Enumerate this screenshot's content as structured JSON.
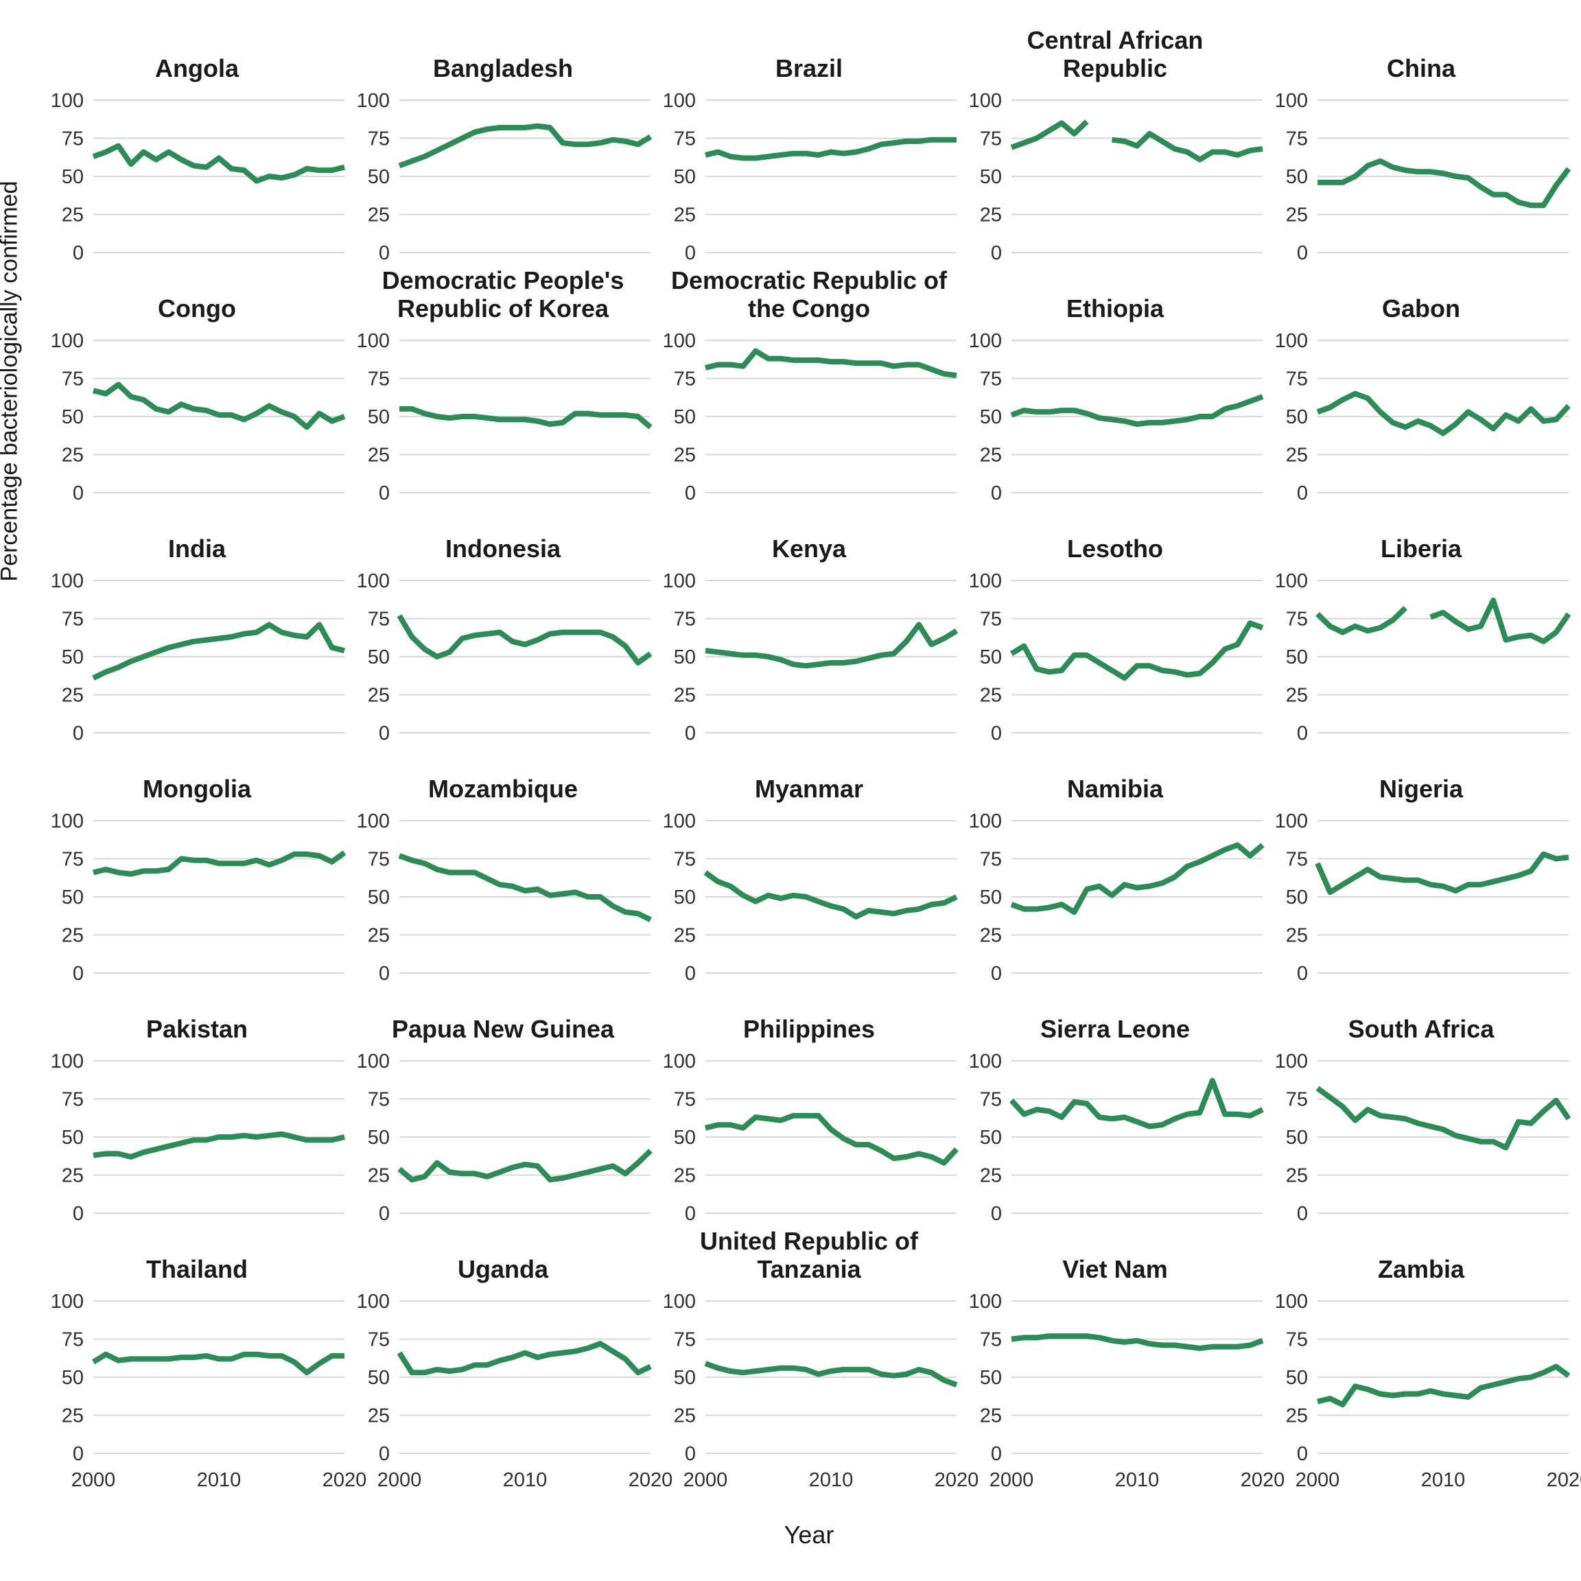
{
  "chart_data": {
    "type": "line",
    "title": "",
    "xlabel": "Year",
    "ylabel": "Percentage bacteriologically confirmed",
    "x_start": 2000,
    "x_end": 2020,
    "xticks": [
      2000,
      2010,
      2020
    ],
    "yticks": [
      0,
      25,
      50,
      75,
      100
    ],
    "ylim": [
      0,
      100
    ],
    "grid": "horizontal-only",
    "legend": "none",
    "line_color": "#2e8b57",
    "gridline_color": "#d8d8d8",
    "tick_text_color": "#303030",
    "title_text_color": "#1a1a1a",
    "facets": [
      {
        "title": "Angola",
        "values": [
          63,
          66,
          70,
          58,
          66,
          61,
          66,
          61,
          57,
          56,
          62,
          55,
          54,
          47,
          50,
          49,
          51,
          55,
          54,
          54,
          56
        ]
      },
      {
        "title": "Bangladesh",
        "values": [
          57,
          60,
          63,
          67,
          71,
          75,
          79,
          81,
          82,
          82,
          82,
          83,
          82,
          72,
          71,
          71,
          72,
          74,
          73,
          71,
          76
        ]
      },
      {
        "title": "Brazil",
        "values": [
          64,
          66,
          63,
          62,
          62,
          63,
          64,
          65,
          65,
          64,
          66,
          65,
          66,
          68,
          71,
          72,
          73,
          73,
          74,
          74,
          74
        ]
      },
      {
        "title": "Central African Republic",
        "values": [
          69,
          72,
          75,
          80,
          85,
          78,
          86,
          null,
          74,
          73,
          70,
          78,
          73,
          68,
          66,
          61,
          66,
          66,
          64,
          67,
          68
        ]
      },
      {
        "title": "China",
        "values": [
          46,
          46,
          46,
          50,
          57,
          60,
          56,
          54,
          53,
          53,
          52,
          50,
          49,
          43,
          38,
          38,
          33,
          31,
          31,
          44,
          55
        ]
      },
      {
        "title": "Congo",
        "values": [
          67,
          65,
          71,
          63,
          61,
          55,
          53,
          58,
          55,
          54,
          51,
          51,
          48,
          52,
          57,
          53,
          50,
          43,
          52,
          47,
          50
        ]
      },
      {
        "title": "Democratic People's Republic of Korea",
        "values": [
          55,
          55,
          52,
          50,
          49,
          50,
          50,
          49,
          48,
          48,
          48,
          47,
          45,
          46,
          52,
          52,
          51,
          51,
          51,
          50,
          43
        ]
      },
      {
        "title": "Democratic Republic of the Congo",
        "values": [
          82,
          84,
          84,
          83,
          93,
          88,
          88,
          87,
          87,
          87,
          86,
          86,
          85,
          85,
          85,
          83,
          84,
          84,
          81,
          78,
          77
        ]
      },
      {
        "title": "Ethiopia",
        "values": [
          51,
          54,
          53,
          53,
          54,
          54,
          52,
          49,
          48,
          47,
          45,
          46,
          46,
          47,
          48,
          50,
          50,
          55,
          57,
          60,
          63
        ]
      },
      {
        "title": "Gabon",
        "values": [
          53,
          56,
          61,
          65,
          62,
          53,
          46,
          43,
          47,
          44,
          39,
          45,
          53,
          48,
          42,
          51,
          47,
          55,
          47,
          48,
          57
        ]
      },
      {
        "title": "India",
        "values": [
          36,
          40,
          43,
          47,
          50,
          53,
          56,
          58,
          60,
          61,
          62,
          63,
          65,
          66,
          71,
          66,
          64,
          63,
          71,
          56,
          54
        ]
      },
      {
        "title": "Indonesia",
        "values": [
          77,
          63,
          55,
          50,
          53,
          62,
          64,
          65,
          66,
          60,
          58,
          61,
          65,
          66,
          66,
          66,
          66,
          63,
          57,
          46,
          52
        ]
      },
      {
        "title": "Kenya",
        "values": [
          54,
          53,
          52,
          51,
          51,
          50,
          48,
          45,
          44,
          45,
          46,
          46,
          47,
          49,
          51,
          52,
          60,
          71,
          58,
          62,
          67
        ]
      },
      {
        "title": "Lesotho",
        "values": [
          52,
          57,
          42,
          40,
          41,
          51,
          51,
          46,
          41,
          36,
          44,
          44,
          41,
          40,
          38,
          39,
          46,
          55,
          58,
          72,
          69
        ]
      },
      {
        "title": "Liberia",
        "values": [
          78,
          70,
          66,
          70,
          67,
          69,
          74,
          82,
          null,
          76,
          79,
          73,
          68,
          70,
          87,
          61,
          63,
          64,
          60,
          66,
          78
        ]
      },
      {
        "title": "Mongolia",
        "values": [
          66,
          68,
          66,
          65,
          67,
          67,
          68,
          75,
          74,
          74,
          72,
          72,
          72,
          74,
          71,
          74,
          78,
          78,
          77,
          73,
          79
        ]
      },
      {
        "title": "Mozambique",
        "values": [
          77,
          74,
          72,
          68,
          66,
          66,
          66,
          62,
          58,
          57,
          54,
          55,
          51,
          52,
          53,
          50,
          50,
          44,
          40,
          39,
          35
        ]
      },
      {
        "title": "Myanmar",
        "values": [
          66,
          60,
          57,
          51,
          47,
          51,
          49,
          51,
          50,
          47,
          44,
          42,
          37,
          41,
          40,
          39,
          41,
          42,
          45,
          46,
          50
        ]
      },
      {
        "title": "Namibia",
        "values": [
          45,
          42,
          42,
          43,
          45,
          40,
          55,
          57,
          51,
          58,
          56,
          57,
          59,
          63,
          70,
          73,
          77,
          81,
          84,
          77,
          84
        ]
      },
      {
        "title": "Nigeria",
        "values": [
          72,
          53,
          58,
          63,
          68,
          63,
          62,
          61,
          61,
          58,
          57,
          54,
          58,
          58,
          60,
          62,
          64,
          67,
          78,
          75,
          76
        ]
      },
      {
        "title": "Pakistan",
        "values": [
          38,
          39,
          39,
          37,
          40,
          42,
          44,
          46,
          48,
          48,
          50,
          50,
          51,
          50,
          51,
          52,
          50,
          48,
          48,
          48,
          50
        ]
      },
      {
        "title": "Papua New Guinea",
        "values": [
          29,
          22,
          24,
          33,
          27,
          26,
          26,
          24,
          27,
          30,
          32,
          31,
          22,
          23,
          25,
          27,
          29,
          31,
          26,
          33,
          41
        ]
      },
      {
        "title": "Philippines",
        "values": [
          56,
          58,
          58,
          56,
          63,
          62,
          61,
          64,
          64,
          64,
          55,
          49,
          45,
          45,
          41,
          36,
          37,
          39,
          37,
          33,
          42
        ]
      },
      {
        "title": "Sierra Leone",
        "values": [
          74,
          65,
          68,
          67,
          63,
          73,
          72,
          63,
          62,
          63,
          60,
          57,
          58,
          62,
          65,
          66,
          87,
          65,
          65,
          64,
          68
        ]
      },
      {
        "title": "South Africa",
        "values": [
          82,
          76,
          70,
          61,
          68,
          64,
          63,
          62,
          59,
          57,
          55,
          51,
          49,
          47,
          47,
          43,
          60,
          59,
          67,
          74,
          62
        ]
      },
      {
        "title": "Thailand",
        "values": [
          60,
          65,
          61,
          62,
          62,
          62,
          62,
          63,
          63,
          64,
          62,
          62,
          65,
          65,
          64,
          64,
          60,
          53,
          59,
          64,
          64
        ]
      },
      {
        "title": "Uganda",
        "values": [
          66,
          53,
          53,
          55,
          54,
          55,
          58,
          58,
          61,
          63,
          66,
          63,
          65,
          66,
          67,
          69,
          72,
          67,
          62,
          53,
          57
        ]
      },
      {
        "title": "United Republic of Tanzania",
        "values": [
          59,
          56,
          54,
          53,
          54,
          55,
          56,
          56,
          55,
          52,
          54,
          55,
          55,
          55,
          52,
          51,
          52,
          55,
          53,
          48,
          45
        ]
      },
      {
        "title": "Viet Nam",
        "values": [
          75,
          76,
          76,
          77,
          77,
          77,
          77,
          76,
          74,
          73,
          74,
          72,
          71,
          71,
          70,
          69,
          70,
          70,
          70,
          71,
          74
        ]
      },
      {
        "title": "Zambia",
        "values": [
          34,
          36,
          32,
          44,
          42,
          39,
          38,
          39,
          39,
          41,
          39,
          38,
          37,
          43,
          45,
          47,
          49,
          50,
          53,
          57,
          51
        ]
      }
    ]
  }
}
